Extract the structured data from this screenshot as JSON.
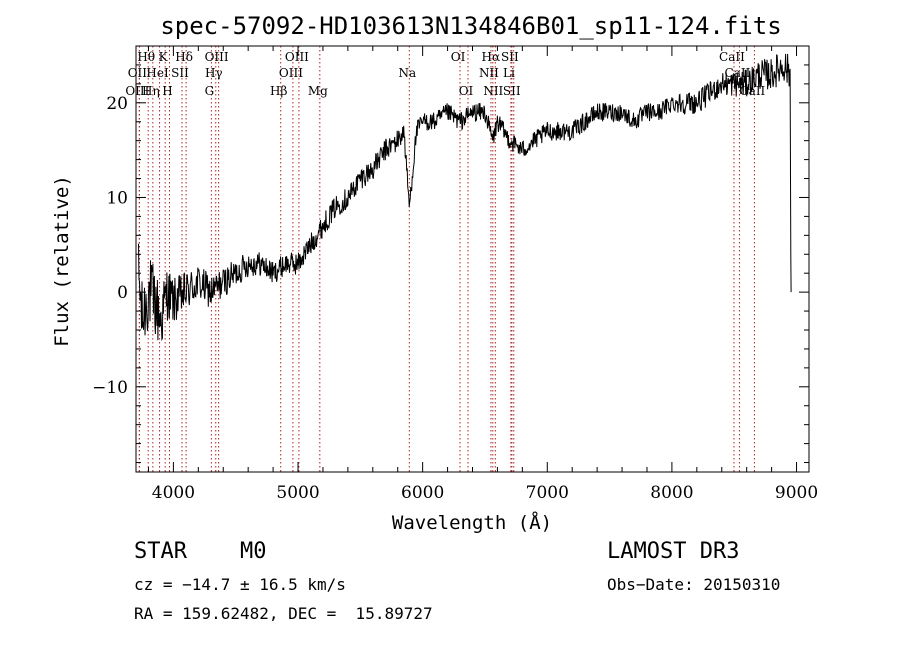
{
  "chart_data": {
    "type": "line",
    "title": "spec-57092-HD103613N134846B01_sp11-124.fits",
    "xlabel": "Wavelength (Å)",
    "ylabel": "Flux (relative)",
    "xlim": [
      3700,
      9100
    ],
    "ylim": [
      -19,
      26
    ],
    "xticks": [
      4000,
      5000,
      6000,
      7000,
      8000,
      9000
    ],
    "xtick_labels": [
      "4000",
      "5000",
      "6000",
      "7000",
      "8000",
      "9000"
    ],
    "yticks": [
      -10,
      0,
      10,
      20
    ],
    "ytick_labels": [
      "−10",
      "0",
      "10",
      "20"
    ],
    "spectrum_anchors": {
      "x": [
        3720,
        3750,
        3800,
        3850,
        3900,
        3950,
        4000,
        4100,
        4200,
        4300,
        4400,
        4500,
        4600,
        4700,
        4800,
        4900,
        5000,
        5100,
        5200,
        5300,
        5400,
        5500,
        5600,
        5700,
        5800,
        5850,
        5893,
        5950,
        6000,
        6100,
        6200,
        6300,
        6400,
        6500,
        6563,
        6600,
        6700,
        6800,
        6900,
        7000,
        7100,
        7200,
        7300,
        7400,
        7500,
        7600,
        7700,
        7800,
        7900,
        8000,
        8100,
        8200,
        8300,
        8400,
        8500,
        8600,
        8700,
        8800,
        8900,
        8950
      ],
      "y": [
        2,
        -3,
        0,
        -1,
        -3,
        0,
        -1,
        0,
        1,
        0,
        1,
        2,
        3,
        3,
        2,
        3,
        3,
        5,
        7,
        9,
        10,
        12,
        13,
        15,
        16,
        17,
        9,
        17,
        18,
        18,
        19,
        18,
        19,
        19,
        16,
        18,
        16,
        15,
        16,
        17,
        17,
        17,
        18,
        19,
        19,
        19,
        18,
        19,
        19,
        20,
        20,
        20,
        21,
        22,
        22,
        22,
        23,
        23,
        24,
        23
      ],
      "noise": [
        3.5,
        4,
        4,
        4,
        3.5,
        3,
        2.5,
        2.2,
        2,
        1.8,
        1.6,
        1.5,
        1.4,
        1.3,
        1.2,
        1.2,
        1.2,
        1.2,
        1.2,
        1.2,
        1.2,
        1.2,
        1.2,
        1.2,
        1.2,
        1.1,
        1,
        1,
        1,
        1,
        1,
        1,
        1,
        1,
        1,
        1,
        1,
        1,
        1,
        1,
        1,
        1,
        1,
        1,
        1,
        1,
        1,
        1,
        1,
        1,
        1.2,
        1.2,
        1.2,
        1.3,
        1.4,
        1.5,
        1.6,
        1.7,
        1.8,
        1.8
      ]
    },
    "spectral_lines": [
      {
        "label": "Hθ",
        "wavelength": 3798,
        "row": 0
      },
      {
        "label": "OII",
        "wavelength": 3727,
        "row": 1
      },
      {
        "label": "OIII",
        "wavelength": 3727,
        "row": 2
      },
      {
        "label": "Hη",
        "wavelength": 3835,
        "row": 2
      },
      {
        "label": "K",
        "wavelength": 3934,
        "row": 0
      },
      {
        "label": "HeI",
        "wavelength": 3889,
        "row": 1
      },
      {
        "label": "H",
        "wavelength": 3969,
        "row": 2
      },
      {
        "label": "SII",
        "wavelength": 4069,
        "row": 1
      },
      {
        "label": "Hδ",
        "wavelength": 4102,
        "row": 0
      },
      {
        "label": "OIII",
        "wavelength": 4363,
        "row": 0
      },
      {
        "label": "Hγ",
        "wavelength": 4340,
        "row": 1
      },
      {
        "label": "G",
        "wavelength": 4305,
        "row": 2
      },
      {
        "label": "Hβ",
        "wavelength": 4861,
        "row": 2
      },
      {
        "label": "OIII",
        "wavelength": 4959,
        "row": 1
      },
      {
        "label": "OIII",
        "wavelength": 5007,
        "row": 0
      },
      {
        "label": "Mg",
        "wavelength": 5175,
        "row": 2
      },
      {
        "label": "Na",
        "wavelength": 5893,
        "row": 1
      },
      {
        "label": "OI",
        "wavelength": 6300,
        "row": 0
      },
      {
        "label": "OI",
        "wavelength": 6364,
        "row": 2
      },
      {
        "label": "Hα",
        "wavelength": 6563,
        "row": 0
      },
      {
        "label": "NII",
        "wavelength": 6548,
        "row": 1
      },
      {
        "label": "NII",
        "wavelength": 6583,
        "row": 2
      },
      {
        "label": "Li",
        "wavelength": 6708,
        "row": 1
      },
      {
        "label": "SII",
        "wavelength": 6716,
        "row": 0
      },
      {
        "label": "SII",
        "wavelength": 6731,
        "row": 2
      },
      {
        "label": "CaII",
        "wavelength": 8498,
        "row": 0
      },
      {
        "label": "CaII",
        "wavelength": 8542,
        "row": 1
      },
      {
        "label": "CaII",
        "wavelength": 8662,
        "row": 2
      }
    ],
    "line_color": "#000000",
    "marker_color": "#b22222"
  },
  "info": {
    "object_class": "STAR",
    "subclass": "M0",
    "survey": "LAMOST DR3",
    "redshift": "cz = −14.7 ± 16.5 km/s",
    "obs_date": "Obs−Date: 20150310",
    "coords": "RA = 159.62482, DEC =  15.89727"
  }
}
